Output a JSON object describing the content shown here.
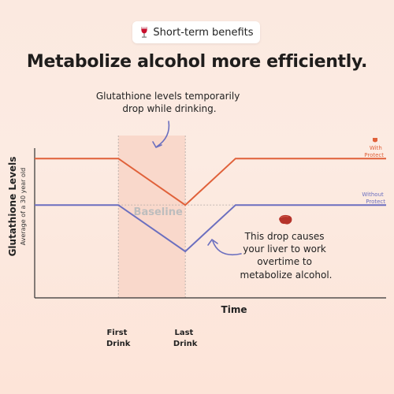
{
  "badge": {
    "label": "Short-term benefits",
    "icon": "wine-glass-icon"
  },
  "headline": "Metabolize alcohol more efficiently.",
  "annotations": {
    "top": [
      "Glutathione levels temporarily",
      "drop while drinking."
    ],
    "bottom": [
      "This drop causes",
      "your liver to work",
      "overtime to",
      "metabolize alcohol."
    ],
    "bottom_icon": "liver-icon"
  },
  "colors": {
    "with": "#e0613a",
    "without": "#6b6fbf",
    "highlight": "#f9d8cb",
    "text": "#222222",
    "muted": "#b8b8b8"
  },
  "chart_data": {
    "type": "line",
    "ylabel": "Glutathione Levels",
    "ylabel_sub": "Average of a 30 year old",
    "xlabel": "Time",
    "x_ticks": [
      {
        "x": 2.5,
        "lines": [
          "First",
          "Drink"
        ]
      },
      {
        "x": 4.5,
        "lines": [
          "Last",
          "Drink"
        ]
      }
    ],
    "baseline_label": "Baseline",
    "series": [
      {
        "name_lines": [
          "With",
          "Protect"
        ],
        "color": "#e0613a",
        "points": [
          [
            0,
            0.5
          ],
          [
            2.5,
            0.5
          ],
          [
            4.5,
            0
          ],
          [
            6.0,
            0.5
          ],
          [
            10.5,
            0.5
          ]
        ]
      },
      {
        "name_lines": [
          "Without",
          "Protect"
        ],
        "color": "#6b6fbf",
        "points": [
          [
            0,
            0
          ],
          [
            2.5,
            0
          ],
          [
            4.5,
            -0.5
          ],
          [
            6.0,
            0
          ],
          [
            10.5,
            0
          ]
        ]
      }
    ],
    "x_range": [
      0,
      10.5
    ],
    "y_range": [
      -1.0,
      0.85
    ]
  }
}
